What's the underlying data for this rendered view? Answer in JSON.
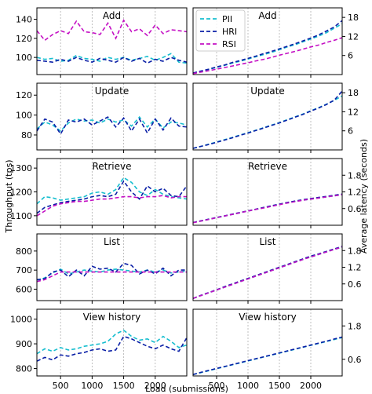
{
  "chart_data": {
    "type": "line",
    "x": [
      125,
      250,
      375,
      500,
      625,
      750,
      875,
      1000,
      1125,
      1250,
      1375,
      1500,
      1625,
      1750,
      1875,
      2000,
      2125,
      2250,
      2375,
      2500
    ],
    "xlim": [
      125,
      2500
    ],
    "xticks": [
      500,
      1000,
      1500,
      2000
    ],
    "xlabel": "Load (submissions)",
    "ylabel_left": "Throughput (tps)",
    "ylabel_right": "Average latency (seconds)",
    "grid": "vertical dotted lines at x ticks",
    "legend": {
      "placement": "top-left of Add latency panel",
      "entries": [
        "PII",
        "HRI",
        "RSI"
      ]
    },
    "series_colors": {
      "PII": "#17becf",
      "HRI": "#0a1fa6",
      "RSI": "#c410c4"
    },
    "panels": [
      {
        "title": "Add",
        "metric": "throughput",
        "ylim": [
          82,
          152
        ],
        "yticks": [
          100,
          120,
          140
        ],
        "series": [
          {
            "name": "PII",
            "values": [
              100,
              98,
              99,
              96,
              97,
              102,
              99,
              98,
              96,
              100,
              98,
              100,
              97,
              99,
              101,
              97,
              100,
              104,
              95,
              94
            ]
          },
          {
            "name": "HRI",
            "values": [
              97,
              96,
              95,
              98,
              96,
              100,
              97,
              95,
              99,
              97,
              95,
              100,
              96,
              99,
              94,
              98,
              96,
              100,
              97,
              95
            ]
          },
          {
            "name": "RSI",
            "values": [
              128,
              118,
              124,
              128,
              125,
              138,
              127,
              126,
              124,
              136,
              120,
              139,
              127,
              130,
              123,
              134,
              125,
              129,
              128,
              127
            ]
          }
        ]
      },
      {
        "title": "Add",
        "metric": "latency",
        "ylim": [
          0,
          21
        ],
        "yticks": [
          6,
          12,
          18
        ],
        "series": [
          {
            "name": "PII",
            "values": [
              0.5,
              1.0,
              1.6,
              2.3,
              2.9,
              3.6,
              4.2,
              4.9,
              5.6,
              6.3,
              7.0,
              7.8,
              8.7,
              9.4,
              10.3,
              11.2,
              12.1,
              13.2,
              14.6,
              16.0
            ]
          },
          {
            "name": "HRI",
            "values": [
              0.5,
              1.1,
              1.7,
              2.4,
              3.0,
              3.8,
              4.4,
              5.1,
              5.8,
              6.6,
              7.3,
              8.1,
              8.9,
              9.7,
              10.6,
              11.5,
              12.5,
              13.7,
              15.0,
              17.0
            ]
          },
          {
            "name": "RSI",
            "values": [
              0.3,
              0.8,
              1.2,
              1.7,
              2.2,
              2.7,
              3.2,
              3.7,
              4.3,
              4.8,
              5.4,
              6.1,
              6.7,
              7.3,
              8.0,
              8.7,
              9.3,
              10.1,
              10.8,
              11.6
            ]
          }
        ]
      },
      {
        "title": "Update",
        "metric": "throughput",
        "ylim": [
          65,
          132
        ],
        "yticks": [
          80,
          100,
          120
        ],
        "series": [
          {
            "name": "PII",
            "values": [
              86,
              93,
              90,
              84,
              92,
              96,
              94,
              95,
              92,
              96,
              93,
              95,
              89,
              98,
              88,
              96,
              87,
              93,
              92,
              90
            ]
          },
          {
            "name": "HRI",
            "values": [
              84,
              96,
              93,
              81,
              95,
              93,
              96,
              90,
              94,
              98,
              88,
              97,
              84,
              96,
              82,
              96,
              85,
              97,
              89,
              88
            ]
          }
        ]
      },
      {
        "title": "Update",
        "metric": "latency",
        "ylim": [
          0,
          21
        ],
        "yticks": [
          6,
          12,
          18
        ],
        "series": [
          {
            "name": "PII",
            "values": [
              0.5,
              1.1,
              1.8,
              2.5,
              3.2,
              3.9,
              4.7,
              5.4,
              6.2,
              7.0,
              7.8,
              8.6,
              9.5,
              10.4,
              11.3,
              12.3,
              13.3,
              14.4,
              15.6,
              17.0
            ]
          },
          {
            "name": "HRI",
            "values": [
              0.5,
              1.1,
              1.7,
              2.4,
              3.1,
              3.8,
              4.6,
              5.3,
              6.1,
              6.9,
              7.7,
              8.5,
              9.4,
              10.3,
              11.2,
              12.2,
              13.2,
              14.3,
              15.7,
              18.5
            ]
          }
        ]
      },
      {
        "title": "Retrieve",
        "metric": "throughput",
        "ylim": [
          1060,
          1340
        ],
        "yticks": [
          1100,
          1200,
          1300
        ],
        "series": [
          {
            "name": "PII",
            "values": [
              1150,
              1180,
              1175,
              1165,
              1170,
              1175,
              1180,
              1195,
              1200,
              1190,
              1210,
              1260,
              1240,
              1200,
              1185,
              1210,
              1190,
              1180,
              1175,
              1170
            ]
          },
          {
            "name": "HRI",
            "values": [
              1110,
              1135,
              1145,
              1155,
              1160,
              1165,
              1170,
              1180,
              1185,
              1180,
              1190,
              1245,
              1200,
              1170,
              1225,
              1200,
              1215,
              1185,
              1180,
              1225
            ]
          },
          {
            "name": "RSI",
            "values": [
              1100,
              1120,
              1140,
              1150,
              1155,
              1160,
              1160,
              1165,
              1170,
              1170,
              1175,
              1180,
              1180,
              1175,
              1180,
              1180,
              1185,
              1175,
              1180,
              1180
            ]
          }
        ]
      },
      {
        "title": "Retrieve",
        "metric": "latency",
        "ylim": [
          0,
          2.4
        ],
        "yticks": [
          0.6,
          1.2,
          1.8
        ],
        "series": [
          {
            "name": "PII",
            "values": [
              0.1,
              0.15,
              0.21,
              0.27,
              0.33,
              0.39,
              0.45,
              0.51,
              0.57,
              0.63,
              0.69,
              0.75,
              0.81,
              0.86,
              0.9,
              0.94,
              0.98,
              1.02,
              1.06,
              1.1
            ]
          },
          {
            "name": "HRI",
            "values": [
              0.1,
              0.16,
              0.22,
              0.28,
              0.34,
              0.4,
              0.46,
              0.52,
              0.58,
              0.64,
              0.7,
              0.76,
              0.82,
              0.87,
              0.92,
              0.96,
              1.0,
              1.04,
              1.08,
              1.12
            ]
          },
          {
            "name": "RSI",
            "values": [
              0.09,
              0.15,
              0.21,
              0.27,
              0.33,
              0.39,
              0.45,
              0.51,
              0.57,
              0.62,
              0.68,
              0.74,
              0.8,
              0.85,
              0.9,
              0.94,
              0.98,
              1.02,
              1.06,
              1.1
            ]
          }
        ]
      },
      {
        "title": "List",
        "metric": "throughput",
        "ylim": [
          540,
          890
        ],
        "yticks": [
          600,
          700,
          800
        ],
        "series": [
          {
            "name": "PII",
            "values": [
              640,
              660,
              685,
              705,
              680,
              690,
              700,
              695,
              690,
              700,
              705,
              700,
              695,
              690,
              700,
              690,
              700,
              685,
              690,
              695
            ]
          },
          {
            "name": "HRI",
            "values": [
              650,
              655,
              690,
              700,
              665,
              700,
              670,
              720,
              705,
              710,
              690,
              735,
              725,
              680,
              700,
              680,
              710,
              670,
              700,
              700
            ]
          },
          {
            "name": "RSI",
            "values": [
              640,
              650,
              670,
              690,
              690,
              690,
              690,
              690,
              690,
              690,
              690,
              690,
              690,
              690,
              690,
              690,
              690,
              690,
              690,
              690
            ]
          }
        ]
      },
      {
        "title": "List",
        "metric": "latency",
        "ylim": [
          0,
          2.4
        ],
        "yticks": [
          0.6,
          1.2,
          1.8
        ],
        "series": [
          {
            "name": "PII",
            "values": [
              0.08,
              0.18,
              0.28,
              0.38,
              0.48,
              0.58,
              0.68,
              0.78,
              0.88,
              0.98,
              1.08,
              1.18,
              1.28,
              1.38,
              1.48,
              1.57,
              1.66,
              1.75,
              1.84,
              1.92
            ]
          },
          {
            "name": "HRI",
            "values": [
              0.08,
              0.19,
              0.29,
              0.39,
              0.5,
              0.6,
              0.7,
              0.8,
              0.9,
              1.0,
              1.1,
              1.2,
              1.3,
              1.4,
              1.5,
              1.6,
              1.68,
              1.77,
              1.86,
              1.95
            ]
          },
          {
            "name": "RSI",
            "values": [
              0.08,
              0.18,
              0.28,
              0.38,
              0.48,
              0.58,
              0.68,
              0.78,
              0.88,
              0.98,
              1.08,
              1.18,
              1.28,
              1.38,
              1.48,
              1.57,
              1.66,
              1.75,
              1.84,
              1.93
            ]
          }
        ]
      },
      {
        "title": "View history",
        "metric": "throughput",
        "ylim": [
          770,
          1040
        ],
        "yticks": [
          800,
          900,
          1000
        ],
        "series": [
          {
            "name": "PII",
            "values": [
              860,
              880,
              870,
              885,
              875,
              880,
              890,
              895,
              900,
              910,
              940,
              955,
              930,
              915,
              920,
              905,
              930,
              910,
              885,
              895
            ]
          },
          {
            "name": "HRI",
            "values": [
              830,
              845,
              835,
              855,
              850,
              860,
              865,
              875,
              880,
              870,
              875,
              930,
              920,
              905,
              890,
              880,
              895,
              880,
              870,
              925
            ]
          }
        ]
      },
      {
        "title": "View history",
        "metric": "latency",
        "ylim": [
          0,
          2.4
        ],
        "yticks": [
          0.6,
          1.8
        ],
        "series": [
          {
            "name": "PII",
            "values": [
              0.05,
              0.12,
              0.19,
              0.26,
              0.33,
              0.4,
              0.47,
              0.54,
              0.61,
              0.68,
              0.75,
              0.82,
              0.89,
              0.96,
              1.03,
              1.1,
              1.17,
              1.24,
              1.31,
              1.38
            ]
          },
          {
            "name": "HRI",
            "values": [
              0.05,
              0.13,
              0.2,
              0.27,
              0.34,
              0.41,
              0.48,
              0.55,
              0.62,
              0.69,
              0.76,
              0.83,
              0.9,
              0.97,
              1.04,
              1.11,
              1.18,
              1.25,
              1.33,
              1.4
            ]
          }
        ]
      }
    ]
  }
}
